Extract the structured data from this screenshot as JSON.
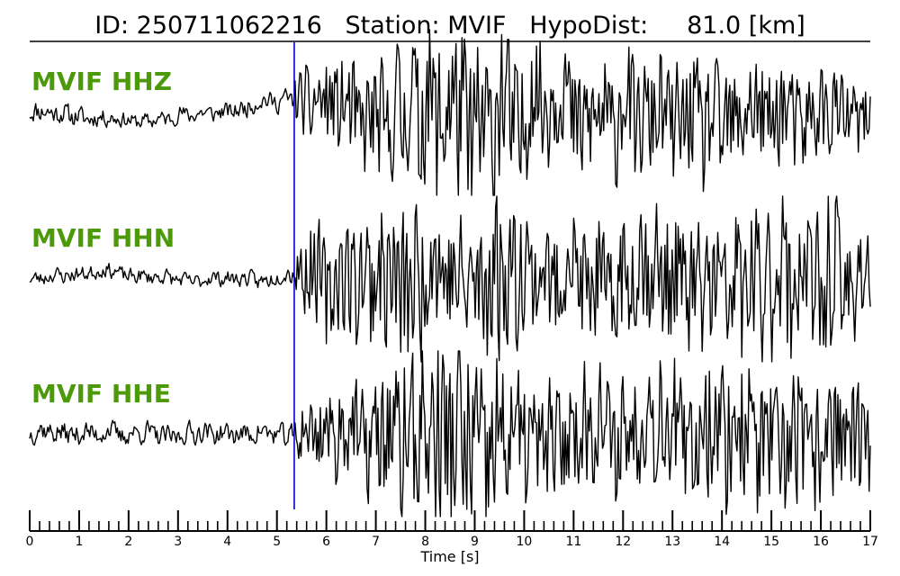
{
  "chart_data": {
    "type": "line",
    "title": "ID: 250711062216   Station: MVIF   HypoDist:     81.0 [km]",
    "event_id": "250711062216",
    "station": "MVIF",
    "hypodist_km": 81.0,
    "xlabel": "Time [s]",
    "xlim": [
      0,
      17
    ],
    "x_ticks": [
      "0",
      "1",
      "2",
      "3",
      "4",
      "5",
      "6",
      "7",
      "8",
      "9",
      "10",
      "11",
      "12",
      "13",
      "14",
      "15",
      "16",
      "17"
    ],
    "minor_tick_step": 0.2,
    "pick_time": 5.35,
    "label_color": "#4c9a0a",
    "trace_color": "#000000",
    "pick_color": "#0000cc",
    "series": [
      {
        "name": "MVIF HHZ",
        "seed": 11,
        "pre_amp": 0.17,
        "post_amp": 0.55,
        "envelope": [
          [
            0,
            0.22
          ],
          [
            1,
            0.2
          ],
          [
            2,
            0.15
          ],
          [
            3,
            0.16
          ],
          [
            4,
            0.18
          ],
          [
            5,
            0.2
          ],
          [
            5.4,
            0.25
          ],
          [
            5.6,
            0.35
          ],
          [
            6.5,
            0.5
          ],
          [
            7.5,
            0.65
          ],
          [
            8.3,
            0.95
          ],
          [
            9.4,
            0.95
          ],
          [
            10.2,
            0.65
          ],
          [
            11.5,
            0.6
          ],
          [
            12.5,
            0.55
          ],
          [
            13.5,
            0.6
          ],
          [
            15,
            0.55
          ],
          [
            16,
            0.45
          ],
          [
            17,
            0.35
          ]
        ],
        "baseline": [
          [
            0,
            0
          ],
          [
            1,
            -0.05
          ],
          [
            2,
            -0.12
          ],
          [
            3,
            -0.05
          ],
          [
            4,
            0.02
          ],
          [
            5,
            0.12
          ],
          [
            5.4,
            0.2
          ],
          [
            6,
            0.15
          ],
          [
            7,
            0
          ],
          [
            17,
            0
          ]
        ]
      },
      {
        "name": "MVIF HHN",
        "seed": 23,
        "envelope": [
          [
            0,
            0.15
          ],
          [
            2,
            0.15
          ],
          [
            4,
            0.15
          ],
          [
            5.2,
            0.17
          ],
          [
            5.4,
            0.35
          ],
          [
            6,
            0.55
          ],
          [
            7,
            0.65
          ],
          [
            7.5,
            0.85
          ],
          [
            8.5,
            0.6
          ],
          [
            9.3,
            0.9
          ],
          [
            10.2,
            0.55
          ],
          [
            12,
            0.65
          ],
          [
            14,
            0.7
          ],
          [
            15.5,
            0.8
          ],
          [
            16.2,
            0.75
          ],
          [
            17,
            0.55
          ]
        ],
        "baseline": [
          [
            0,
            0
          ],
          [
            1.5,
            0.08
          ],
          [
            3,
            0
          ],
          [
            17,
            0
          ]
        ]
      },
      {
        "name": "MVIF HHE",
        "seed": 37,
        "envelope": [
          [
            0,
            0.22
          ],
          [
            2,
            0.2
          ],
          [
            4,
            0.2
          ],
          [
            5.3,
            0.22
          ],
          [
            5.5,
            0.3
          ],
          [
            6,
            0.4
          ],
          [
            7,
            0.55
          ],
          [
            7.3,
            0.7
          ],
          [
            8.2,
            0.85
          ],
          [
            8.6,
            1.0
          ],
          [
            9.3,
            0.9
          ],
          [
            10.2,
            0.55
          ],
          [
            11.5,
            0.55
          ],
          [
            13,
            0.6
          ],
          [
            14.5,
            0.7
          ],
          [
            15.5,
            0.65
          ],
          [
            17,
            0.6
          ]
        ],
        "baseline": [
          [
            0,
            0
          ],
          [
            17,
            0
          ]
        ]
      }
    ]
  }
}
